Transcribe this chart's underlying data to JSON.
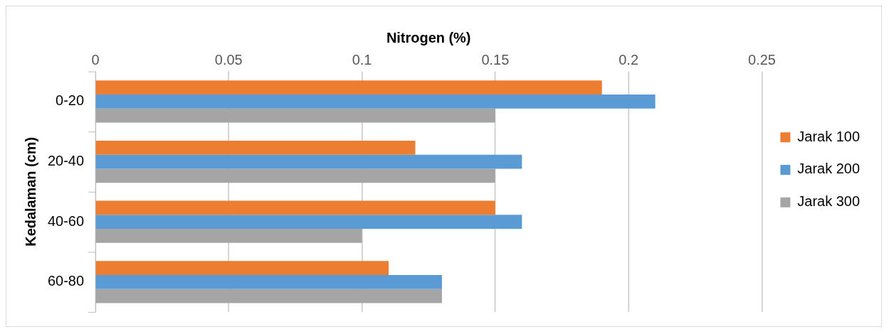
{
  "chart_data": {
    "type": "bar",
    "orientation": "horizontal",
    "xlabel": "Nitrogen (%)",
    "ylabel": "Kedalaman (cm)",
    "categories": [
      "0-20",
      "20-40",
      "40-60",
      "60-80"
    ],
    "series": [
      {
        "name": "Jarak 100",
        "color": "#ed7d31",
        "values": [
          0.19,
          0.12,
          0.15,
          0.11
        ]
      },
      {
        "name": "Jarak 200",
        "color": "#5b9bd5",
        "values": [
          0.21,
          0.16,
          0.16,
          0.13
        ]
      },
      {
        "name": "Jarak 300",
        "color": "#a5a5a5",
        "values": [
          0.15,
          0.15,
          0.1,
          0.13
        ]
      }
    ],
    "xlim": [
      0,
      0.25
    ],
    "xticks": [
      0,
      0.05,
      0.1,
      0.15,
      0.2,
      0.25
    ],
    "grid": "x",
    "legend": "right"
  }
}
